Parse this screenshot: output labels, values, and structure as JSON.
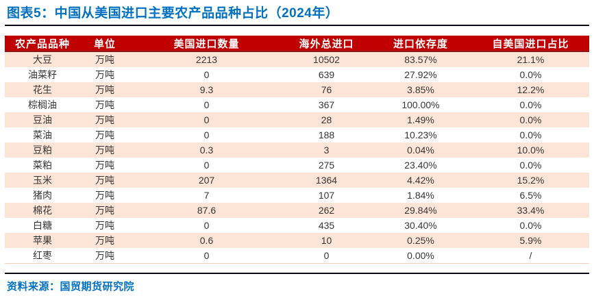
{
  "header": {
    "title": "图表5：中国从美国进口主要农产品品种占比（2024年）"
  },
  "footer": {
    "source": "资料来源：国贸期货研究院"
  },
  "colors": {
    "accent_blue": "#0070C0",
    "header_red": "#C00000",
    "header_border_red": "#8E1515",
    "row_alt_pink": "#FCE4D6",
    "divider_black": "#0A0A14",
    "cell_text": "#363636"
  },
  "chart_data": {
    "type": "table",
    "title": "中国从美国进口主要农产品品种占比（2024年）",
    "columns": [
      "农产品品种",
      "单位",
      "美国进口数量",
      "海外总进口",
      "进口依存度",
      "自美国进口占比"
    ],
    "rows": [
      [
        "大豆",
        "万吨",
        "2213",
        "10502",
        "83.57%",
        "21.1%"
      ],
      [
        "油菜籽",
        "万吨",
        "0",
        "639",
        "27.92%",
        "0.0%"
      ],
      [
        "花生",
        "万吨",
        "9.3",
        "76",
        "3.85%",
        "12.2%"
      ],
      [
        "棕榈油",
        "万吨",
        "0",
        "367",
        "100.00%",
        "0.0%"
      ],
      [
        "豆油",
        "万吨",
        "0",
        "28",
        "1.49%",
        "0.0%"
      ],
      [
        "菜油",
        "万吨",
        "0",
        "188",
        "10.23%",
        "0.0%"
      ],
      [
        "豆粕",
        "万吨",
        "0.3",
        "3",
        "0.04%",
        "10.0%"
      ],
      [
        "菜粕",
        "万吨",
        "0",
        "275",
        "23.40%",
        "0.0%"
      ],
      [
        "玉米",
        "万吨",
        "207",
        "1364",
        "4.42%",
        "15.2%"
      ],
      [
        "猪肉",
        "万吨",
        "7",
        "107",
        "1.84%",
        "6.5%"
      ],
      [
        "棉花",
        "万吨",
        "87.6",
        "262",
        "29.84%",
        "33.4%"
      ],
      [
        "白糖",
        "万吨",
        "0",
        "435",
        "30.40%",
        "0.0%"
      ],
      [
        "苹果",
        "万吨",
        "0.6",
        "10",
        "0.25%",
        "5.9%"
      ],
      [
        "红枣",
        "万吨",
        "0",
        "0",
        "0.00%",
        "/"
      ]
    ]
  }
}
